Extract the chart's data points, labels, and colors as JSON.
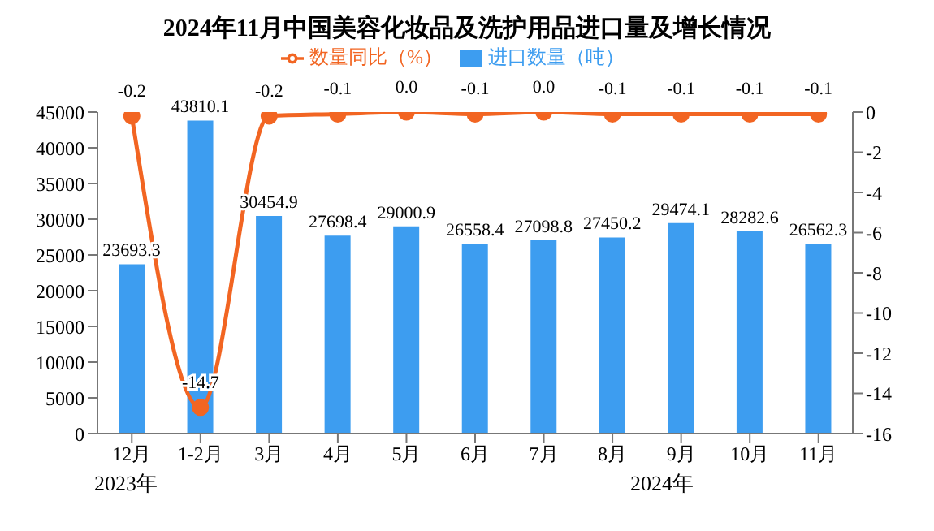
{
  "chart_data": {
    "type": "bar",
    "title": "2024年11月中国美容化妆品及洗护用品进口量及增长情况",
    "categories": [
      "12月",
      "1-2月",
      "3月",
      "4月",
      "5月",
      "6月",
      "7月",
      "8月",
      "9月",
      "10月",
      "11月"
    ],
    "series": [
      {
        "name": "进口数量（吨）",
        "color": "#3d9df0",
        "values": [
          23693.3,
          43810.1,
          30454.9,
          27698.4,
          29000.9,
          26558.4,
          27098.8,
          27450.2,
          29474.1,
          28282.6,
          26562.3
        ]
      },
      {
        "name": "数量同比（%）",
        "type": "line",
        "axis": "y2",
        "color": "#f26522",
        "marker": "circle",
        "values": [
          -0.2,
          -14.7,
          -0.2,
          -0.1,
          0.0,
          -0.1,
          0.0,
          -0.1,
          -0.1,
          -0.1,
          -0.1
        ],
        "value_labels": [
          "-0.2",
          "-14.7",
          "-0.2",
          "-0.1",
          "0.0",
          "-0.1",
          "0.0",
          "-0.1",
          "-0.1",
          "-0.1",
          "-0.1"
        ]
      }
    ],
    "data_labels": true,
    "ylim": [
      0,
      45000
    ],
    "yticks": [
      0,
      5000,
      10000,
      15000,
      20000,
      25000,
      30000,
      35000,
      40000,
      45000
    ],
    "y2lim": [
      -16,
      0
    ],
    "y2ticks": [
      -16,
      -14,
      -12,
      -10,
      -8,
      -6,
      -4,
      -2,
      0
    ],
    "legend": "top",
    "annotations": [
      "2023年",
      "2024年"
    ]
  }
}
